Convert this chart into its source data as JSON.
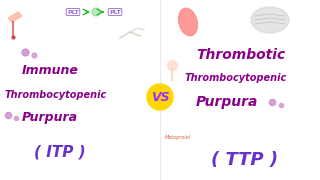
{
  "background_color": "#ffffff",
  "vs_circle_color": "#FFD700",
  "vs_text": "VS",
  "vs_text_color": "#9B30FF",
  "left_title1": "Immune",
  "left_title2": "Thrombocytopenic",
  "left_title3": "Purpura",
  "left_abbrev": "( ITP )",
  "right_title1": "Thrombotic",
  "right_title2": "Thrombocytopenic",
  "right_title3": "Purpura",
  "right_abbrev": "( TTP )",
  "main_text_color": "#8B008B",
  "abbrev_color": "#6633CC",
  "divider_color": "#dddddd",
  "plt_text_color": "#9966CC",
  "plt_arrow_color": "#22BB22",
  "petechiae_color": "#CC88CC",
  "kidney_color": "#FF8888",
  "brain_color": "#CCCCCC",
  "hand_color": "#FFB6A0",
  "font_size_large": 9,
  "font_size_med": 7,
  "font_size_small": 5.5,
  "font_size_abbrev": 11,
  "font_size_vs": 9
}
